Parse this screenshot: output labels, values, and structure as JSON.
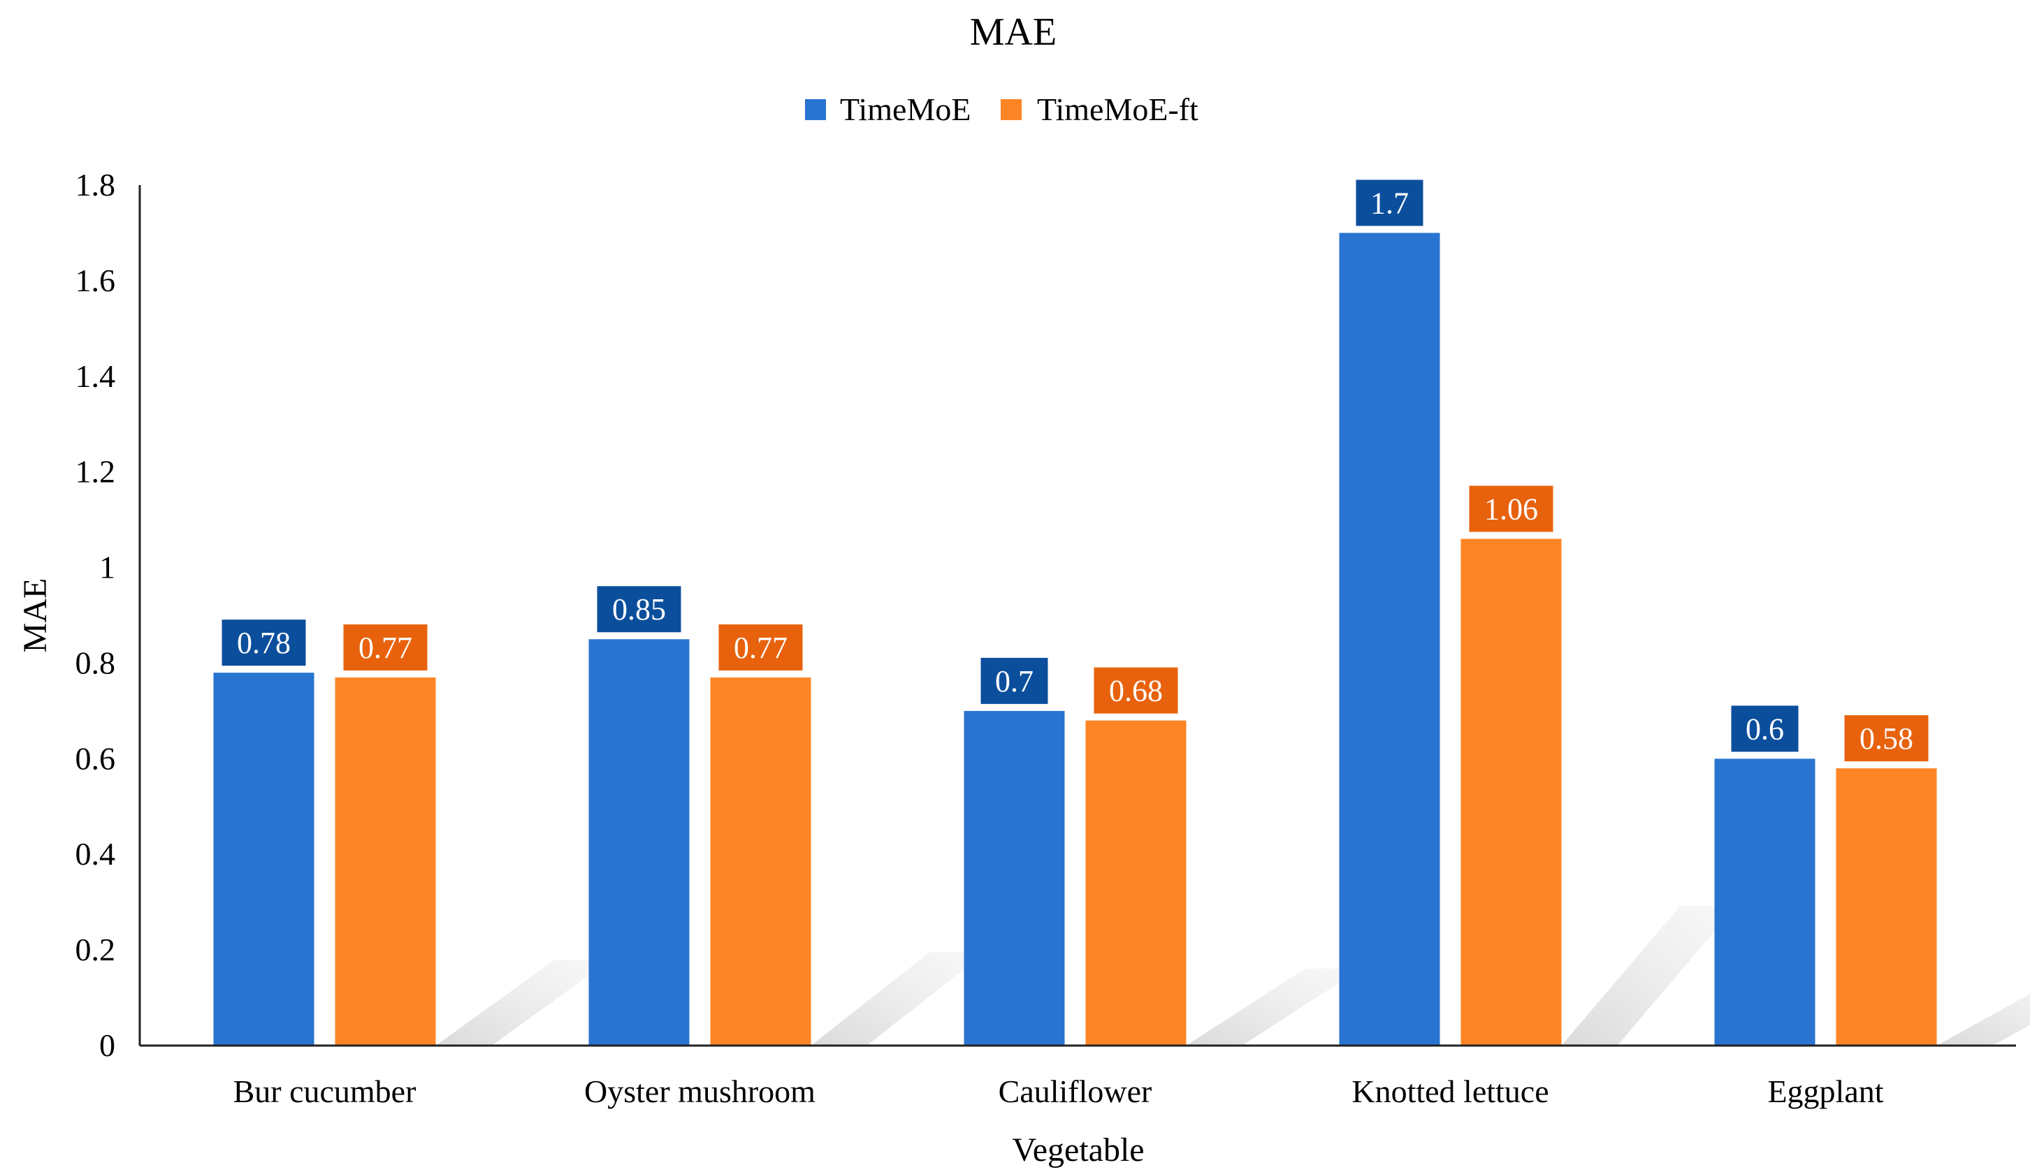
{
  "chart_data": {
    "type": "bar",
    "title": "MAE",
    "xlabel": "Vegetable",
    "ylabel": "MAE",
    "categories": [
      "Bur cucumber",
      "Oyster mushroom",
      "Cauliflower",
      "Knotted lettuce",
      "Eggplant"
    ],
    "series": [
      {
        "name": "TimeMoE",
        "values": [
          0.78,
          0.85,
          0.7,
          1.7,
          0.6
        ],
        "labels": [
          "0.78",
          "0.85",
          "0.7",
          "1.7",
          "0.6"
        ],
        "color": "#2874d0",
        "label_bg": "#0b4f9c"
      },
      {
        "name": "TimeMoE-ft",
        "values": [
          0.77,
          0.77,
          0.68,
          1.06,
          0.58
        ],
        "labels": [
          "0.77",
          "0.77",
          "0.68",
          "1.06",
          "0.58"
        ],
        "color": "#fd8526",
        "label_bg": "#e8620d"
      }
    ],
    "ylim": [
      0,
      1.8
    ],
    "yticks": [
      0,
      0.2,
      0.4,
      0.6,
      0.8,
      1,
      1.2,
      1.4,
      1.6,
      1.8
    ],
    "ytick_labels": [
      "0",
      "0.2",
      "0.4",
      "0.6",
      "0.8",
      "1",
      "1.2",
      "1.4",
      "1.6",
      "1.8"
    ],
    "legend_position": "top-center",
    "grid": false
  }
}
